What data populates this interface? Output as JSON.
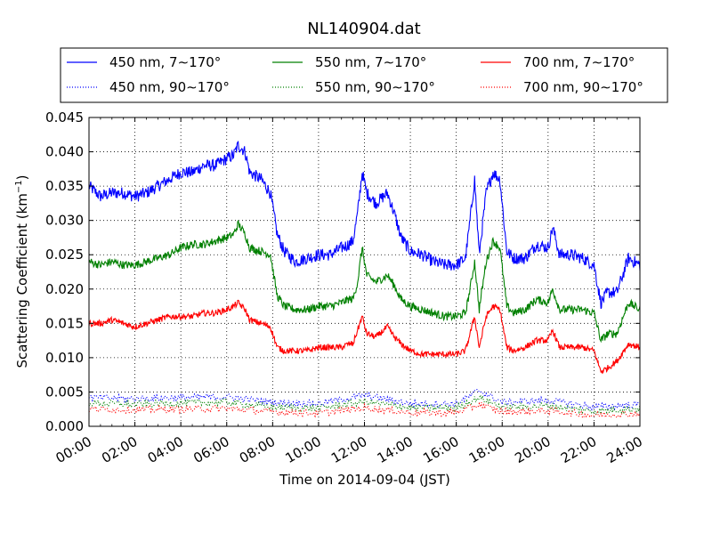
{
  "chart_data": {
    "type": "line",
    "title": "NL140904.dat",
    "xlabel": "Time on 2014-09-04 (JST)",
    "ylabel": "Scattering Coefficient (km",
    "ylabel_sup": "−1",
    "ylabel_tail": ")",
    "xlim": [
      0,
      24
    ],
    "ylim": [
      0,
      0.045
    ],
    "grid": true,
    "legend_position": "top, above plot, 3 columns",
    "x_ticks": [
      0,
      2,
      4,
      6,
      8,
      10,
      12,
      14,
      16,
      18,
      20,
      22,
      24
    ],
    "x_tick_labels": [
      "00:00",
      "02:00",
      "04:00",
      "06:00",
      "08:00",
      "10:00",
      "12:00",
      "14:00",
      "16:00",
      "18:00",
      "20:00",
      "22:00",
      "24:00"
    ],
    "y_ticks": [
      0,
      0.005,
      0.01,
      0.015,
      0.02,
      0.025,
      0.03,
      0.035,
      0.04,
      0.045
    ],
    "y_tick_labels": [
      "0.000",
      "0.005",
      "0.010",
      "0.015",
      "0.020",
      "0.025",
      "0.030",
      "0.035",
      "0.040",
      "0.045"
    ],
    "series": [
      {
        "name": "450 nm, 7∼170°",
        "color": "#0000ff",
        "style": "solid",
        "x": [
          0,
          0.5,
          1,
          1.5,
          2,
          2.5,
          3,
          3.5,
          4,
          4.5,
          5,
          5.5,
          6,
          6.3,
          6.5,
          6.8,
          7,
          7.5,
          7.9,
          8.2,
          8.5,
          9,
          9.5,
          10,
          10.5,
          11,
          11.3,
          11.5,
          11.7,
          11.9,
          12.1,
          12.5,
          13,
          13.3,
          13.6,
          14,
          14.5,
          15,
          15.5,
          16,
          16.4,
          16.6,
          16.8,
          17,
          17.3,
          17.6,
          17.9,
          18.2,
          18.5,
          19,
          19.5,
          20,
          20.2,
          20.5,
          21,
          21.5,
          22,
          22.3,
          22.6,
          23,
          23.5,
          24
        ],
        "y": [
          0.035,
          0.0335,
          0.034,
          0.034,
          0.0335,
          0.034,
          0.035,
          0.036,
          0.037,
          0.037,
          0.038,
          0.038,
          0.039,
          0.0395,
          0.041,
          0.04,
          0.037,
          0.036,
          0.034,
          0.028,
          0.0255,
          0.024,
          0.0245,
          0.025,
          0.025,
          0.026,
          0.0265,
          0.027,
          0.031,
          0.037,
          0.034,
          0.0325,
          0.034,
          0.031,
          0.0275,
          0.0255,
          0.025,
          0.024,
          0.0235,
          0.0235,
          0.0245,
          0.03,
          0.036,
          0.025,
          0.034,
          0.037,
          0.036,
          0.0255,
          0.0245,
          0.0245,
          0.0265,
          0.026,
          0.029,
          0.025,
          0.025,
          0.0245,
          0.0235,
          0.018,
          0.0195,
          0.0195,
          0.0245,
          0.0235
        ]
      },
      {
        "name": "550 nm, 7∼170°",
        "color": "#008000",
        "style": "solid",
        "x": [
          0,
          0.5,
          1,
          1.5,
          2,
          2.5,
          3,
          3.5,
          4,
          4.5,
          5,
          5.5,
          6,
          6.3,
          6.5,
          6.8,
          7,
          7.5,
          7.9,
          8.2,
          8.5,
          9,
          9.5,
          10,
          10.5,
          11,
          11.3,
          11.5,
          11.7,
          11.9,
          12.1,
          12.5,
          13,
          13.3,
          13.6,
          14,
          14.5,
          15,
          15.5,
          16,
          16.4,
          16.6,
          16.8,
          17,
          17.3,
          17.6,
          17.9,
          18.2,
          18.5,
          19,
          19.5,
          20,
          20.2,
          20.5,
          21,
          21.5,
          22,
          22.3,
          22.6,
          23,
          23.5,
          24
        ],
        "y": [
          0.024,
          0.0235,
          0.024,
          0.0235,
          0.0235,
          0.024,
          0.0245,
          0.025,
          0.026,
          0.0265,
          0.0265,
          0.027,
          0.0275,
          0.028,
          0.0295,
          0.028,
          0.026,
          0.0255,
          0.025,
          0.019,
          0.0175,
          0.017,
          0.017,
          0.0175,
          0.0175,
          0.018,
          0.0185,
          0.0185,
          0.021,
          0.026,
          0.022,
          0.021,
          0.022,
          0.0205,
          0.0185,
          0.0175,
          0.017,
          0.0165,
          0.016,
          0.016,
          0.0165,
          0.02,
          0.024,
          0.017,
          0.024,
          0.027,
          0.026,
          0.0175,
          0.0165,
          0.017,
          0.0185,
          0.018,
          0.02,
          0.017,
          0.017,
          0.017,
          0.0165,
          0.0125,
          0.0135,
          0.0135,
          0.018,
          0.017
        ]
      },
      {
        "name": "700 nm, 7∼170°",
        "color": "#ff0000",
        "style": "solid",
        "x": [
          0,
          0.5,
          1,
          1.5,
          2,
          2.5,
          3,
          3.5,
          4,
          4.5,
          5,
          5.5,
          6,
          6.3,
          6.5,
          6.8,
          7,
          7.5,
          7.9,
          8.2,
          8.5,
          9,
          9.5,
          10,
          10.5,
          11,
          11.3,
          11.5,
          11.7,
          11.9,
          12.1,
          12.5,
          13,
          13.3,
          13.6,
          14,
          14.5,
          15,
          15.5,
          16,
          16.4,
          16.6,
          16.8,
          17,
          17.3,
          17.6,
          17.9,
          18.2,
          18.5,
          19,
          19.5,
          20,
          20.2,
          20.5,
          21,
          21.5,
          22,
          22.3,
          22.6,
          23,
          23.5,
          24
        ],
        "y": [
          0.015,
          0.015,
          0.0155,
          0.015,
          0.0145,
          0.015,
          0.0155,
          0.016,
          0.016,
          0.016,
          0.0165,
          0.0165,
          0.017,
          0.0175,
          0.018,
          0.017,
          0.0155,
          0.015,
          0.0145,
          0.0115,
          0.011,
          0.011,
          0.011,
          0.0115,
          0.0115,
          0.0115,
          0.012,
          0.012,
          0.014,
          0.016,
          0.0135,
          0.013,
          0.0145,
          0.013,
          0.012,
          0.011,
          0.0105,
          0.0105,
          0.0105,
          0.0105,
          0.011,
          0.0135,
          0.016,
          0.0115,
          0.016,
          0.0175,
          0.017,
          0.0115,
          0.011,
          0.0115,
          0.0125,
          0.0125,
          0.014,
          0.0115,
          0.0115,
          0.0115,
          0.011,
          0.008,
          0.0085,
          0.0095,
          0.012,
          0.0115
        ]
      },
      {
        "name": "450 nm, 90∼170°",
        "color": "#0000ff",
        "style": "dotted",
        "x": [
          0,
          2,
          4,
          6,
          8,
          10,
          12,
          14,
          16,
          17,
          18,
          20,
          22,
          24
        ],
        "y": [
          0.0042,
          0.004,
          0.0042,
          0.0043,
          0.0035,
          0.0033,
          0.0045,
          0.0033,
          0.0033,
          0.0052,
          0.0035,
          0.0038,
          0.0028,
          0.0032
        ]
      },
      {
        "name": "550 nm, 90∼170°",
        "color": "#008000",
        "style": "dotted",
        "x": [
          0,
          2,
          4,
          6,
          8,
          10,
          12,
          14,
          16,
          17,
          18,
          20,
          22,
          24
        ],
        "y": [
          0.0034,
          0.0032,
          0.0034,
          0.0035,
          0.0028,
          0.0026,
          0.0036,
          0.0027,
          0.0027,
          0.0042,
          0.0028,
          0.003,
          0.0022,
          0.0026
        ]
      },
      {
        "name": "700 nm, 90∼170°",
        "color": "#ff0000",
        "style": "dotted",
        "x": [
          0,
          2,
          4,
          6,
          8,
          10,
          12,
          14,
          16,
          17,
          18,
          20,
          22,
          24
        ],
        "y": [
          0.0025,
          0.0024,
          0.0025,
          0.0026,
          0.0021,
          0.0019,
          0.0027,
          0.002,
          0.002,
          0.0032,
          0.0021,
          0.0023,
          0.0016,
          0.0019
        ]
      }
    ]
  }
}
